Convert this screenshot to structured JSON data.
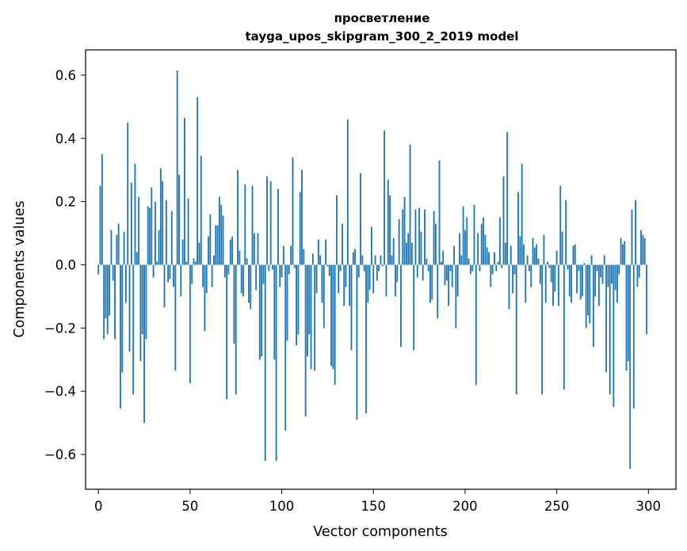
{
  "chart_data": {
    "type": "bar",
    "title_line1": "просветление",
    "title_line2": "tayga_upos_skipgram_300_2_2019 model",
    "xlabel": "Vector components",
    "ylabel": "Components values",
    "xlim": [
      -7,
      315
    ],
    "ylim": [
      -0.71,
      0.68
    ],
    "xticks": [
      0,
      50,
      100,
      150,
      200,
      250,
      300
    ],
    "yticks": [
      -0.6,
      -0.4,
      -0.2,
      0.0,
      0.2,
      0.4,
      0.6
    ],
    "ytick_labels": [
      "−0.6",
      "−0.4",
      "−0.2",
      "0.0",
      "0.2",
      "0.4",
      "0.6"
    ],
    "bar_color": "#1f77b4",
    "values": [
      -0.03,
      0.25,
      0.35,
      -0.235,
      -0.17,
      -0.22,
      -0.16,
      0.11,
      -0.05,
      -0.235,
      0.095,
      0.13,
      -0.455,
      -0.34,
      0.105,
      -0.12,
      0.45,
      -0.275,
      0.26,
      -0.41,
      0.32,
      0.04,
      0.215,
      -0.305,
      -0.22,
      -0.5,
      -0.235,
      0.185,
      0.18,
      0.245,
      -0.04,
      0.2,
      0.01,
      0.11,
      0.305,
      0.265,
      -0.135,
      0.205,
      -0.055,
      -0.045,
      0.17,
      -0.07,
      -0.335,
      0.615,
      0.285,
      -0.1,
      0.08,
      0.465,
      0.01,
      0.21,
      -0.375,
      -0.06,
      0.02,
      0.01,
      0.53,
      0.07,
      0.345,
      -0.07,
      -0.21,
      -0.09,
      0.09,
      0.16,
      -0.07,
      0.03,
      0.125,
      0.125,
      0.215,
      0.19,
      0.155,
      -0.04,
      -0.425,
      -0.03,
      0.08,
      0.09,
      -0.25,
      -0.41,
      0.3,
      0.045,
      -0.09,
      -0.1,
      0.255,
      0.02,
      -0.12,
      -0.14,
      0.25,
      0.1,
      -0.08,
      0.1,
      -0.3,
      -0.29,
      -0.06,
      -0.62,
      0.28,
      -0.02,
      0.265,
      -0.015,
      -0.3,
      -0.62,
      0.24,
      -0.07,
      -0.04,
      0.06,
      -0.525,
      -0.24,
      -0.03,
      0.06,
      0.34,
      -0.01,
      -0.255,
      -0.22,
      0.23,
      0.3,
      0.05,
      -0.48,
      -0.29,
      -0.22,
      -0.33,
      0.035,
      -0.335,
      -0.09,
      0.08,
      0.03,
      -0.12,
      -0.2,
      0.08,
      -0.005,
      -0.035,
      -0.32,
      -0.33,
      -0.38,
      0.22,
      -0.09,
      -0.02,
      0.13,
      -0.13,
      -0.07,
      0.46,
      -0.13,
      -0.27,
      0.04,
      0.05,
      -0.49,
      -0.04,
      0.29,
      0.03,
      -0.02,
      -0.47,
      -0.12,
      -0.08,
      0.12,
      -0.09,
      0.03,
      -0.05,
      -0.02,
      0.03,
      -0.005,
      0.425,
      -0.1,
      0.27,
      0.22,
      0.03,
      0.085,
      -0.1,
      -0.055,
      0.145,
      -0.26,
      0.175,
      0.215,
      0.07,
      0.1,
      0.38,
      0.07,
      -0.27,
      0.175,
      -0.04,
      0.18,
      0.105,
      -0.05,
      0.175,
      0.02,
      -0.02,
      -0.12,
      -0.11,
      0.17,
      0.13,
      -0.17,
      0.33,
      0.01,
      0.045,
      -0.065,
      -0.05,
      -0.13,
      -0.02,
      -0.07,
      0.06,
      -0.2,
      -0.1,
      0.1,
      0.03,
      0.185,
      0.11,
      0.15,
      0.02,
      -0.03,
      -0.02,
      0.19,
      -0.38,
      0.1,
      -0.02,
      0.13,
      0.15,
      0.095,
      0.055,
      0.04,
      -0.07,
      -0.03,
      0.04,
      -0.02,
      0.01,
      0.15,
      -0.01,
      0.28,
      0.07,
      0.42,
      -0.14,
      0.06,
      -0.09,
      -0.03,
      -0.41,
      0.23,
      0.09,
      0.32,
      0.065,
      -0.12,
      0.03,
      -0.02,
      -0.07,
      0.085,
      0.055,
      0.065,
      0.02,
      -0.06,
      -0.41,
      0.095,
      -0.12,
      0.01,
      -0.01,
      -0.055,
      -0.13,
      -0.085,
      0.045,
      -0.13,
      0.25,
      0.105,
      -0.395,
      0.205,
      -0.015,
      -0.1,
      -0.12,
      0.06,
      0.065,
      -0.09,
      -0.02,
      -0.11,
      -0.1,
      0.005,
      -0.2,
      -0.16,
      -0.185,
      0.03,
      -0.26,
      -0.1,
      -0.02,
      -0.13,
      -0.04,
      -0.06,
      0.03,
      -0.34,
      -0.07,
      -0.41,
      -0.06,
      -0.45,
      -0.08,
      -0.12,
      -0.03,
      0.085,
      0.065,
      0.075,
      -0.335,
      -0.305,
      -0.645,
      0.175,
      -0.455,
      0.205,
      -0.07,
      -0.04,
      0.11,
      0.095,
      0.085,
      -0.22
    ]
  }
}
